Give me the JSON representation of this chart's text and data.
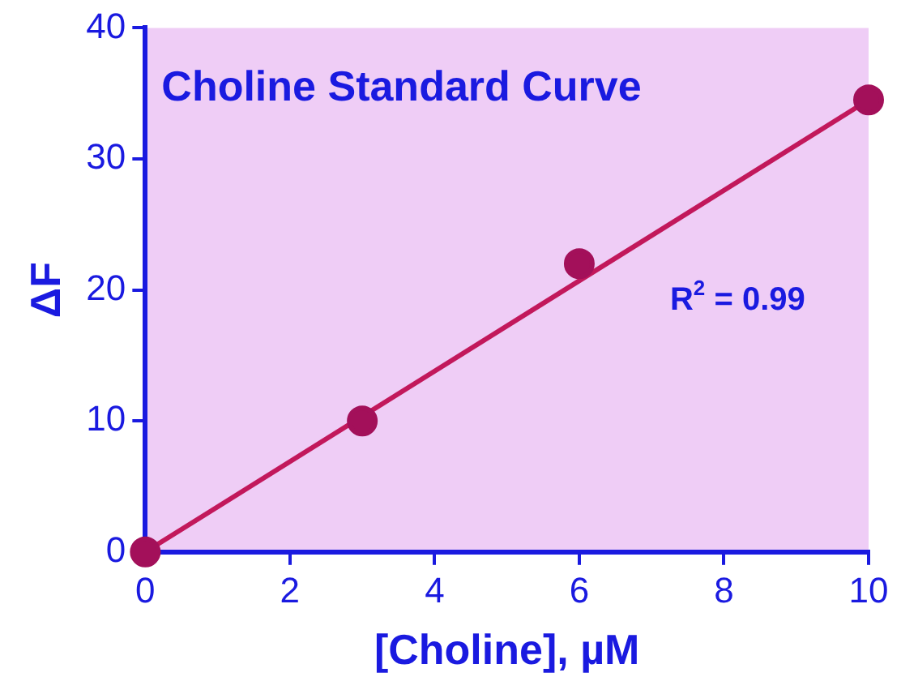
{
  "chart_data": {
    "type": "scatter",
    "title": "Choline Standard Curve",
    "xlabel": "[Choline], µM",
    "ylabel": "ΔF",
    "series": [
      {
        "type": "scatter",
        "color": "#a3105a",
        "x": [
          0,
          3,
          6,
          10
        ],
        "values": [
          0,
          10,
          22,
          34.5
        ],
        "marker": "circle"
      },
      {
        "type": "line",
        "color": "#c2185b",
        "x": [
          0,
          10
        ],
        "values": [
          0,
          34.5
        ],
        "marker": "none",
        "line_style": "solid"
      }
    ],
    "annotations": [
      "R$^{2}$ = 0.99"
    ],
    "xlim": [
      0,
      10
    ],
    "ylim": [
      0,
      40
    ],
    "xticks": [
      0,
      2,
      4,
      6,
      8,
      10
    ],
    "yticks": [
      0,
      10,
      20,
      30,
      40
    ],
    "grid": false,
    "legend": false
  }
}
